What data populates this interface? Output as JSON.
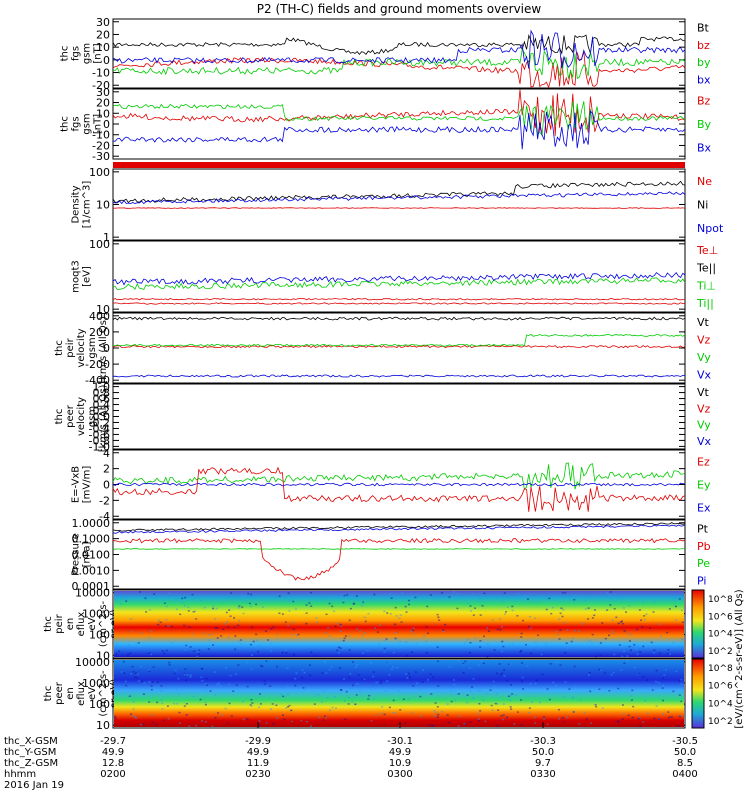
{
  "colors": {
    "black": "#000000",
    "red": "#e00000",
    "green": "#00cc00",
    "blue": "#0000dd"
  },
  "chart_data": {
    "type": "line",
    "title": "P2 (TH-C) fields and ground moments overview",
    "panels": [
      {
        "ylabel_lines": [
          "thc",
          "fgs",
          "gsm",
          "[nT]"
        ],
        "yticks": [
          "30",
          "20",
          "10",
          "0",
          "-10",
          "-20"
        ],
        "legend": [
          {
            "label": "Bt",
            "color": "black"
          },
          {
            "label": "bz",
            "color": "red"
          },
          {
            "label": "by",
            "color": "green"
          },
          {
            "label": "bx",
            "color": "blue"
          }
        ]
      },
      {
        "ylabel_lines": [
          "thc",
          "fgs",
          "gsm",
          "[nT]"
        ],
        "yticks": [
          "30",
          "20",
          "10",
          "0",
          "-10",
          "-20",
          "-30"
        ],
        "legend": [
          {
            "label": "Bz",
            "color": "red"
          },
          {
            "label": "By",
            "color": "green"
          },
          {
            "label": "Bx",
            "color": "blue"
          }
        ]
      },
      {
        "ylabel_lines": [
          "Density",
          "[1/cm^3]"
        ],
        "yticks": [
          "100",
          "10",
          "1"
        ],
        "legend": [
          {
            "label": "Ne",
            "color": "red"
          },
          {
            "label": "Ni",
            "color": "black"
          },
          {
            "label": "Npot",
            "color": "blue"
          }
        ]
      },
      {
        "ylabel_lines": [
          "moqt3",
          "[eV]"
        ],
        "yticks": [
          "100",
          "10"
        ],
        "legend": [
          {
            "label": "Te⊥",
            "color": "red"
          },
          {
            "label": "Te||",
            "color": "black"
          },
          {
            "label": "Ti⊥",
            "color": "green"
          },
          {
            "label": "Ti||",
            "color": "green"
          }
        ]
      },
      {
        "ylabel_lines": [
          "thc",
          "peir",
          "velocity",
          "gsm",
          "[km/s (All Qs)]"
        ],
        "yticks": [
          "400",
          "200",
          "0",
          "-200",
          "-400"
        ],
        "legend": [
          {
            "label": "Vt",
            "color": "black"
          },
          {
            "label": "Vz",
            "color": "red"
          },
          {
            "label": "Vy",
            "color": "green"
          },
          {
            "label": "Vx",
            "color": "blue"
          }
        ]
      },
      {
        "ylabel_lines": [
          "thc",
          "peer",
          "velocity",
          "gsm",
          "[km/s (All Qs)]"
        ],
        "yticks": [
          "1.0",
          "0.8",
          "0.6",
          "0.4",
          "0.2",
          "0.0",
          "-0.2",
          "-0.4",
          "-0.6",
          "-0.8",
          "-1.0"
        ],
        "legend": [
          {
            "label": "Vt",
            "color": "black"
          },
          {
            "label": "Vz",
            "color": "red"
          },
          {
            "label": "Vy",
            "color": "green"
          },
          {
            "label": "Vx",
            "color": "blue"
          }
        ]
      },
      {
        "ylabel_lines": [
          "E=-VxB",
          "[mV/m]"
        ],
        "yticks": [
          "4",
          "2",
          "0",
          "-2",
          "-4"
        ],
        "legend": [
          {
            "label": "Ez",
            "color": "red"
          },
          {
            "label": "Ey",
            "color": "green"
          },
          {
            "label": "Ex",
            "color": "blue"
          }
        ]
      },
      {
        "ylabel_lines": [
          "Pressure",
          "[nPa]"
        ],
        "yticks": [
          "1.0000",
          "0.1000",
          "0.0100",
          "0.0010",
          "0.0001"
        ],
        "legend": [
          {
            "label": "Pt",
            "color": "black"
          },
          {
            "label": "Pb",
            "color": "red"
          },
          {
            "label": "Pe",
            "color": "green"
          },
          {
            "label": "Pi",
            "color": "blue"
          }
        ]
      },
      {
        "ylabel_lines": [
          "thc",
          "peir",
          "en",
          "eflux",
          "eV",
          "(cm^2-s-",
          "sr-eV)"
        ],
        "yticks": [
          "10000",
          "1000",
          "100",
          "10"
        ]
      },
      {
        "ylabel_lines": [
          "thc",
          "peer",
          "en",
          "eflux",
          "eV",
          "(cm^2-s-",
          "sr-eV)"
        ],
        "yticks": [
          "10000",
          "1000",
          "100",
          "10"
        ]
      }
    ],
    "colorbars": [
      {
        "ticks": [
          "10^8",
          "10^6",
          "10^4",
          "10^2"
        ]
      },
      {
        "ticks": [
          "10^8",
          "10^6",
          "10^4",
          "10^2"
        ]
      }
    ],
    "colorbar_label": "[eV/(cm^2-s-sr-eV)] (All Qs)",
    "x_rows": [
      {
        "label": "thc_X-GSM",
        "values": [
          "-29.7",
          "-29.9",
          "-30.1",
          "-30.3",
          "-30.5"
        ]
      },
      {
        "label": "thc_Y-GSM",
        "values": [
          "49.9",
          "49.9",
          "49.9",
          "50.0",
          "50.0"
        ]
      },
      {
        "label": "thc_Z-GSM",
        "values": [
          "12.8",
          "11.9",
          "10.9",
          "9.7",
          "8.5"
        ]
      },
      {
        "label": "hhmm",
        "values": [
          "0200",
          "0230",
          "0300",
          "0330",
          "0400"
        ]
      }
    ],
    "date": "2016 Jan 19"
  }
}
